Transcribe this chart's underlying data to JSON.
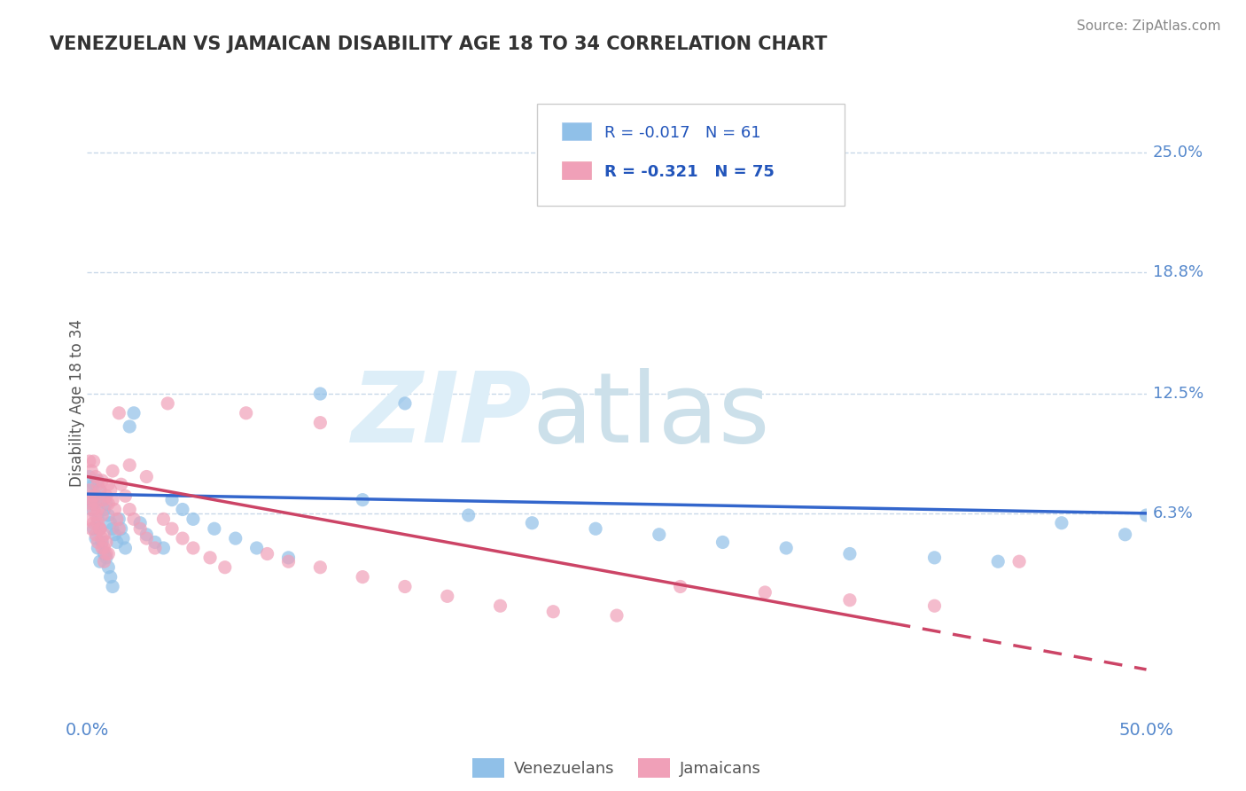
{
  "title": "VENEZUELAN VS JAMAICAN DISABILITY AGE 18 TO 34 CORRELATION CHART",
  "source": "Source: ZipAtlas.com",
  "ylabel": "Disability Age 18 to 34",
  "xlim": [
    0.0,
    0.5
  ],
  "ylim": [
    -0.04,
    0.28
  ],
  "yticks": [
    0.063,
    0.125,
    0.188,
    0.25
  ],
  "ytick_labels": [
    "6.3%",
    "12.5%",
    "18.8%",
    "25.0%"
  ],
  "xticks": [
    0.0,
    0.5
  ],
  "xtick_labels": [
    "0.0%",
    "50.0%"
  ],
  "grid_color": "#c8d8e8",
  "background_color": "#ffffff",
  "venezuelan_color": "#90c0e8",
  "jamaican_color": "#f0a0b8",
  "venezuelan_line_color": "#3366cc",
  "jamaican_line_color": "#cc4466",
  "R_venezuelan": -0.017,
  "N_venezuelan": 61,
  "R_jamaican": -0.321,
  "N_jamaican": 75,
  "legend_venezuelan": "Venezuelans",
  "legend_jamaican": "Jamaicans",
  "ven_line_x0": 0.0,
  "ven_line_y0": 0.073,
  "ven_line_x1": 0.5,
  "ven_line_y1": 0.063,
  "jam_line_x0": 0.0,
  "jam_line_y0": 0.082,
  "jam_line_x1": 0.5,
  "jam_line_y1": -0.018,
  "venezuelan_x": [
    0.001,
    0.001,
    0.002,
    0.002,
    0.003,
    0.003,
    0.003,
    0.004,
    0.004,
    0.005,
    0.005,
    0.005,
    0.006,
    0.006,
    0.006,
    0.007,
    0.007,
    0.008,
    0.008,
    0.009,
    0.009,
    0.01,
    0.01,
    0.011,
    0.011,
    0.012,
    0.012,
    0.013,
    0.014,
    0.015,
    0.016,
    0.017,
    0.018,
    0.02,
    0.022,
    0.025,
    0.028,
    0.032,
    0.036,
    0.04,
    0.045,
    0.05,
    0.06,
    0.07,
    0.08,
    0.095,
    0.11,
    0.13,
    0.15,
    0.18,
    0.21,
    0.24,
    0.27,
    0.3,
    0.33,
    0.36,
    0.4,
    0.43,
    0.46,
    0.49,
    0.5
  ],
  "venezuelan_y": [
    0.082,
    0.075,
    0.07,
    0.065,
    0.078,
    0.068,
    0.055,
    0.072,
    0.05,
    0.08,
    0.06,
    0.045,
    0.075,
    0.055,
    0.038,
    0.07,
    0.048,
    0.065,
    0.042,
    0.068,
    0.04,
    0.062,
    0.035,
    0.058,
    0.03,
    0.055,
    0.025,
    0.052,
    0.048,
    0.06,
    0.055,
    0.05,
    0.045,
    0.108,
    0.115,
    0.058,
    0.052,
    0.048,
    0.045,
    0.07,
    0.065,
    0.06,
    0.055,
    0.05,
    0.045,
    0.04,
    0.125,
    0.07,
    0.12,
    0.062,
    0.058,
    0.055,
    0.052,
    0.048,
    0.045,
    0.042,
    0.04,
    0.038,
    0.058,
    0.052,
    0.062
  ],
  "jamaican_x": [
    0.001,
    0.001,
    0.001,
    0.002,
    0.002,
    0.002,
    0.003,
    0.003,
    0.003,
    0.004,
    0.004,
    0.004,
    0.005,
    0.005,
    0.005,
    0.006,
    0.006,
    0.007,
    0.007,
    0.007,
    0.008,
    0.008,
    0.008,
    0.009,
    0.009,
    0.01,
    0.01,
    0.011,
    0.012,
    0.013,
    0.014,
    0.015,
    0.016,
    0.018,
    0.02,
    0.022,
    0.025,
    0.028,
    0.032,
    0.036,
    0.04,
    0.045,
    0.05,
    0.058,
    0.065,
    0.075,
    0.085,
    0.095,
    0.11,
    0.13,
    0.15,
    0.17,
    0.195,
    0.22,
    0.25,
    0.28,
    0.32,
    0.36,
    0.4,
    0.44,
    0.002,
    0.003,
    0.004,
    0.005,
    0.006,
    0.007,
    0.008,
    0.009,
    0.01,
    0.012,
    0.015,
    0.02,
    0.028,
    0.038,
    0.11
  ],
  "jamaican_y": [
    0.09,
    0.075,
    0.06,
    0.085,
    0.07,
    0.055,
    0.09,
    0.072,
    0.058,
    0.082,
    0.068,
    0.052,
    0.078,
    0.065,
    0.048,
    0.075,
    0.055,
    0.08,
    0.062,
    0.045,
    0.07,
    0.052,
    0.038,
    0.072,
    0.048,
    0.068,
    0.042,
    0.075,
    0.07,
    0.065,
    0.06,
    0.055,
    0.078,
    0.072,
    0.065,
    0.06,
    0.055,
    0.05,
    0.045,
    0.06,
    0.055,
    0.05,
    0.045,
    0.04,
    0.035,
    0.115,
    0.042,
    0.038,
    0.035,
    0.03,
    0.025,
    0.02,
    0.015,
    0.012,
    0.01,
    0.025,
    0.022,
    0.018,
    0.015,
    0.038,
    0.068,
    0.065,
    0.062,
    0.058,
    0.055,
    0.05,
    0.045,
    0.042,
    0.078,
    0.085,
    0.115,
    0.088,
    0.082,
    0.12,
    0.11
  ]
}
